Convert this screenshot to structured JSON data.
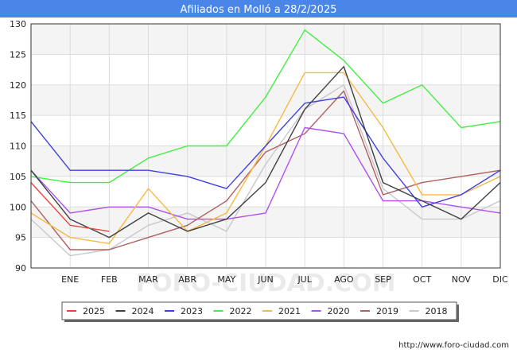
{
  "chart_data": {
    "type": "line",
    "title": "Afiliados en Molló a 28/2/2025",
    "xlabel": "",
    "ylabel": "",
    "categories": [
      "",
      "ENE",
      "FEB",
      "MAR",
      "ABR",
      "MAY",
      "JUN",
      "JUL",
      "AGO",
      "SEP",
      "OCT",
      "NOV",
      "DIC"
    ],
    "ylim": [
      90,
      130
    ],
    "yticks": [
      90,
      95,
      100,
      105,
      110,
      115,
      120,
      125,
      130
    ],
    "grid": true,
    "legend_position": "bottom",
    "series": [
      {
        "name": "2025",
        "color": "#e8453c",
        "values": [
          104,
          97,
          96,
          null,
          null,
          null,
          null,
          null,
          null,
          null,
          null,
          null,
          null
        ]
      },
      {
        "name": "2024",
        "color": "#404040",
        "values": [
          106,
          98,
          95,
          99,
          96,
          98,
          104,
          116,
          123,
          104,
          101,
          98,
          104
        ]
      },
      {
        "name": "2023",
        "color": "#4040e0",
        "values": [
          114,
          106,
          106,
          106,
          105,
          103,
          110,
          117,
          118,
          108,
          100,
          102,
          106
        ]
      },
      {
        "name": "2022",
        "color": "#44ee44",
        "values": [
          105,
          104,
          104,
          108,
          110,
          110,
          118,
          129,
          124,
          117,
          120,
          113,
          114
        ]
      },
      {
        "name": "2021",
        "color": "#f8b944",
        "values": [
          99,
          95,
          94,
          103,
          96,
          99,
          110,
          122,
          122,
          113,
          102,
          102,
          105
        ]
      },
      {
        "name": "2020",
        "color": "#b050f0",
        "values": [
          106,
          99,
          100,
          100,
          98,
          98,
          99,
          113,
          112,
          101,
          101,
          100,
          99
        ]
      },
      {
        "name": "2019",
        "color": "#b06060",
        "values": [
          101,
          93,
          93,
          95,
          97,
          101,
          109,
          112,
          119,
          102,
          104,
          105,
          106
        ]
      },
      {
        "name": "2018",
        "color": "#c8c8c8",
        "values": [
          98,
          92,
          93,
          97,
          99,
          96,
          107,
          116,
          120,
          103,
          98,
          98,
          101
        ]
      }
    ]
  },
  "footer": {
    "url": "http://www.foro-ciudad.com",
    "watermark": "FORO-CIUDAD.COM"
  }
}
